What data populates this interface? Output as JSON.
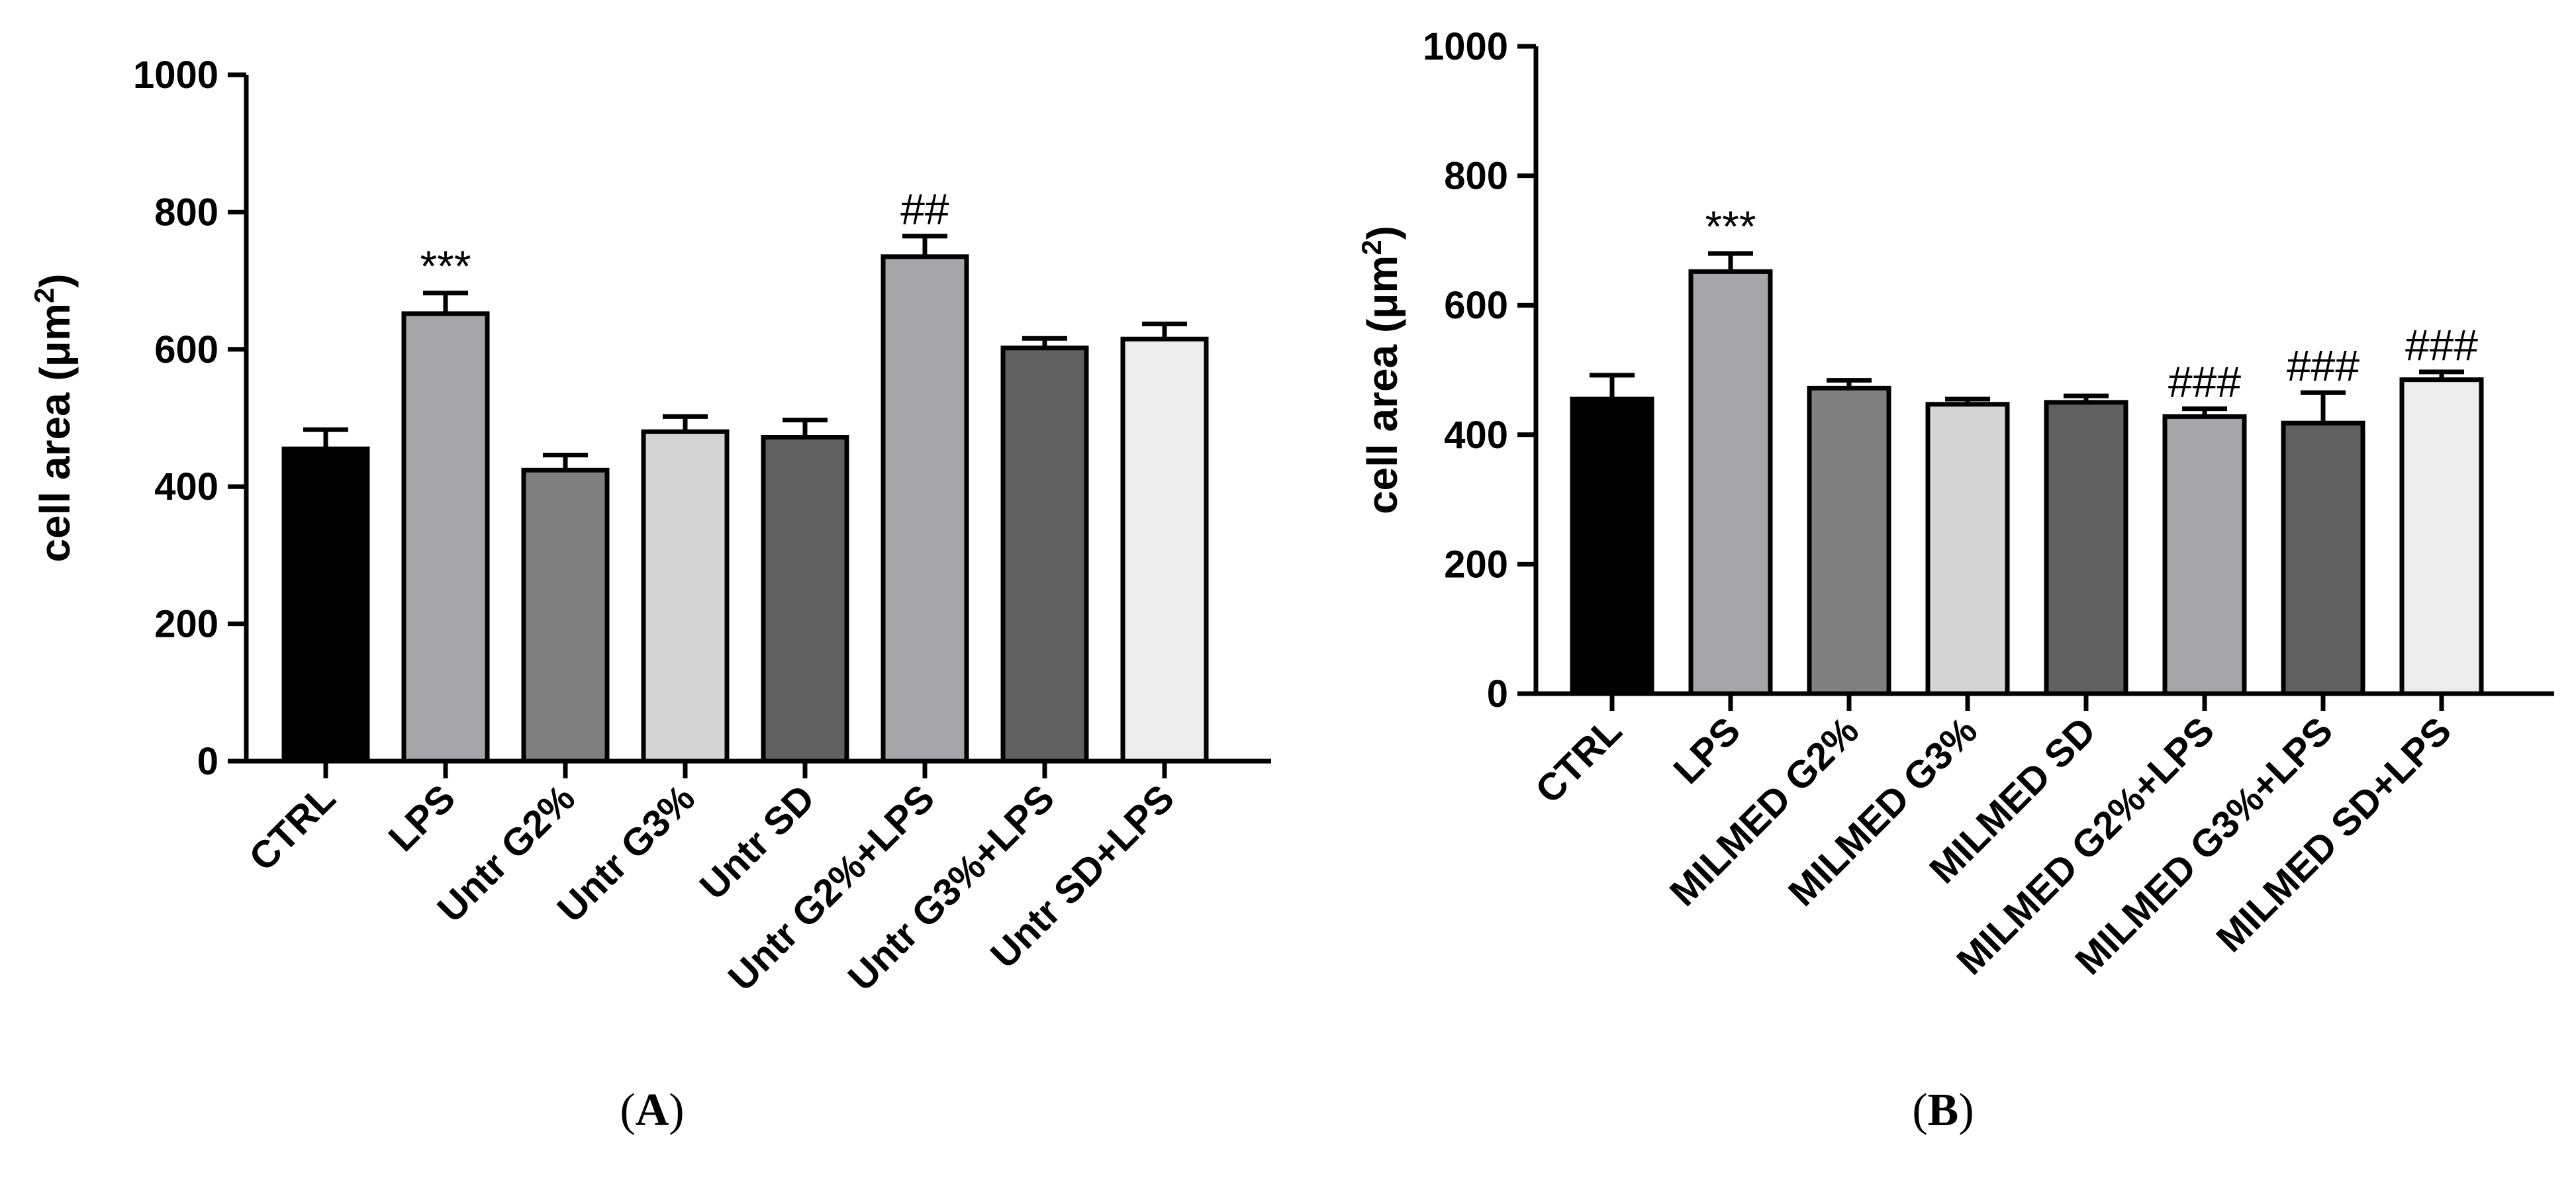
{
  "chart_data": [
    {
      "type": "bar",
      "panel_label": "A",
      "ylabel": "cell area (μm²)",
      "ylabel_text": "cell area (μm",
      "ylabel_sup": "2",
      "ylabel_close": ")",
      "ylim": [
        0,
        1000
      ],
      "yticks": [
        "0",
        "200",
        "400",
        "600",
        "800",
        "1000"
      ],
      "categories": [
        "CTRL",
        "LPS",
        "Untr G2%",
        "Untr G3%",
        "Untr SD",
        "Untr G2%+LPS",
        "Untr G3%+LPS",
        "Untr SD+LPS"
      ],
      "values": [
        455,
        652,
        424,
        480,
        472,
        735,
        602,
        615
      ],
      "errors": [
        28,
        30,
        22,
        22,
        25,
        30,
        14,
        22
      ],
      "colors": [
        "#000000",
        "#a6a6a8",
        "#7f7f7f",
        "#d4d4d4",
        "#606060",
        "#a6a6a8",
        "#606060",
        "#ececec"
      ],
      "annotations": [
        "",
        "***",
        "",
        "",
        "",
        "##",
        "",
        ""
      ]
    },
    {
      "type": "bar",
      "panel_label": "B",
      "ylabel": "cell area (μm²)",
      "ylabel_text": "cell area (μm",
      "ylabel_sup": "2",
      "ylabel_close": ")",
      "ylim": [
        0,
        1000
      ],
      "yticks": [
        "0",
        "200",
        "400",
        "600",
        "800",
        "1000"
      ],
      "categories": [
        "CTRL",
        "LPS",
        "MILMED G2%",
        "MILMED G3%",
        "MILMED SD",
        "MILMED G2%+LPS",
        "MILMED G3%+LPS",
        "MILMED SD+LPS"
      ],
      "values": [
        455,
        652,
        472,
        447,
        450,
        428,
        418,
        485
      ],
      "errors": [
        37,
        28,
        12,
        8,
        10,
        12,
        47,
        12
      ],
      "colors": [
        "#000000",
        "#a6a6a8",
        "#7f7f7f",
        "#d4d4d4",
        "#606060",
        "#a6a6a8",
        "#606060",
        "#ececec"
      ],
      "annotations": [
        "",
        "***",
        "",
        "",
        "",
        "###",
        "###",
        "###"
      ]
    }
  ]
}
